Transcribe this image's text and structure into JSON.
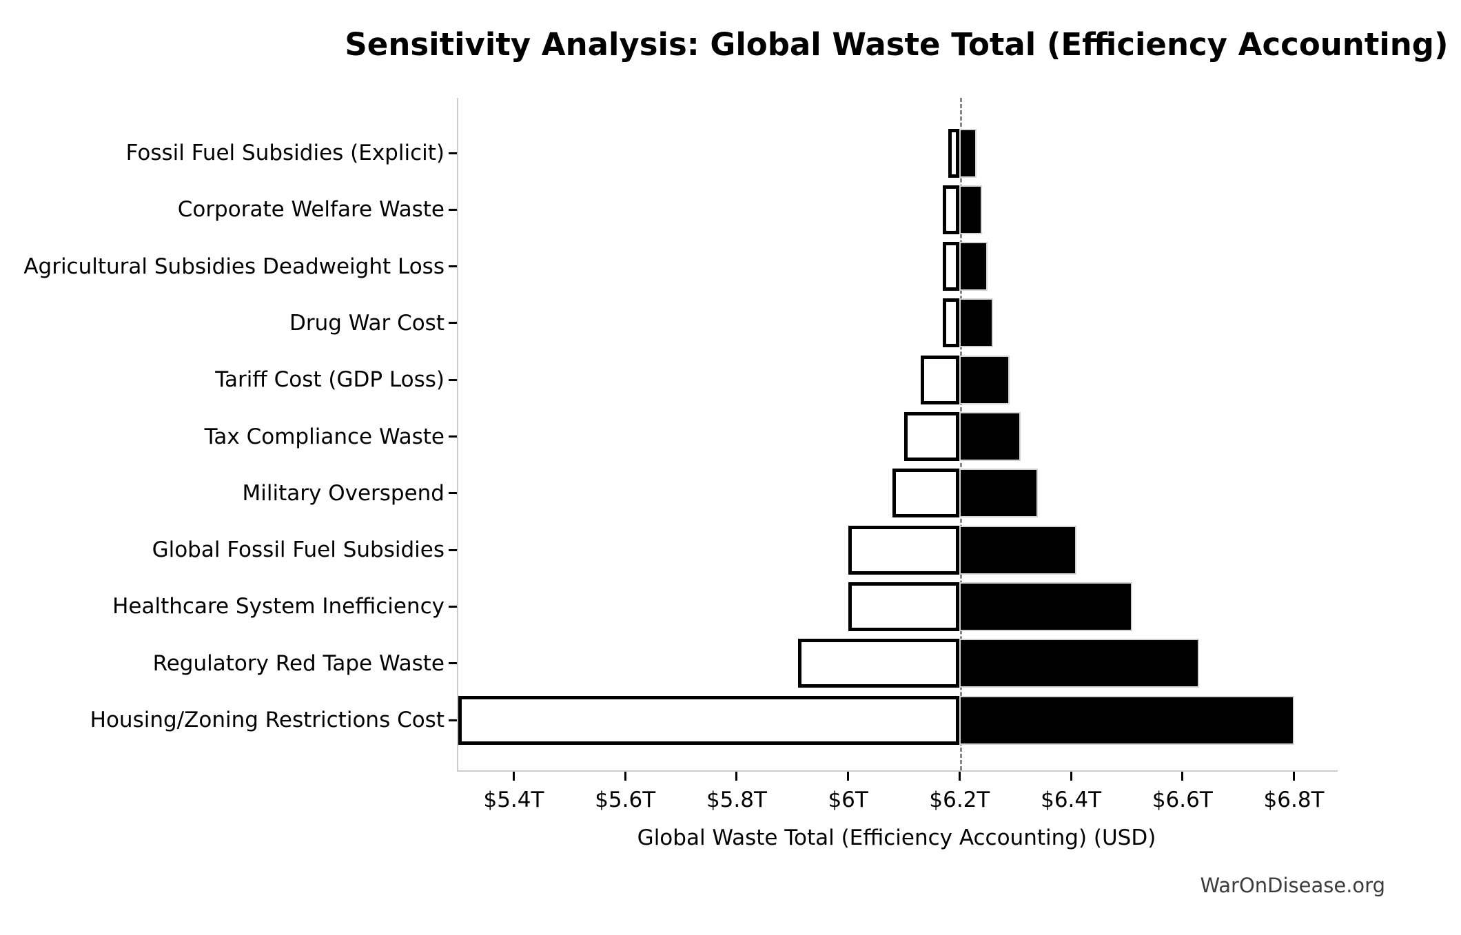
{
  "title": "Sensitivity Analysis: Global Waste Total (Efficiency Accounting)",
  "watermark": "WarOnDisease.org",
  "chart_data": {
    "type": "bar",
    "subtype": "tornado-sensitivity-horizontal",
    "title": "Sensitivity Analysis: Global Waste Total (Efficiency Accounting)",
    "xlabel": "Global Waste Total (Efficiency Accounting) (USD)",
    "ylabel": "",
    "units": "trillions USD",
    "base_value": 6.2,
    "baseline_style": "dashed-gray-vertical",
    "xlim": [
      5.298,
      6.876
    ],
    "grid": false,
    "legend": null,
    "x_ticks": [
      {
        "value": 5.4,
        "label": "$5.4T"
      },
      {
        "value": 5.6,
        "label": "$5.6T"
      },
      {
        "value": 5.8,
        "label": "$5.8T"
      },
      {
        "value": 6.0,
        "label": "$6T"
      },
      {
        "value": 6.2,
        "label": "$6.2T"
      },
      {
        "value": 6.4,
        "label": "$6.4T"
      },
      {
        "value": 6.6,
        "label": "$6.6T"
      },
      {
        "value": 6.8,
        "label": "$6.8T"
      }
    ],
    "categories": [
      "Fossil Fuel Subsidies (Explicit)",
      "Corporate Welfare Waste",
      "Agricultural Subsidies Deadweight Loss",
      "Drug War Cost",
      "Tariff Cost (GDP Loss)",
      "Tax Compliance Waste",
      "Military Overspend",
      "Global Fossil Fuel Subsidies",
      "Healthcare System Inefficiency",
      "Regulatory Red Tape Waste",
      "Housing/Zoning Restrictions Cost"
    ],
    "items": [
      {
        "label": "Fossil Fuel Subsidies (Explicit)",
        "low": 6.18,
        "high": 6.23
      },
      {
        "label": "Corporate Welfare Waste",
        "low": 6.17,
        "high": 6.24
      },
      {
        "label": "Agricultural Subsidies Deadweight Loss",
        "low": 6.17,
        "high": 6.25
      },
      {
        "label": "Drug War Cost",
        "low": 6.17,
        "high": 6.26
      },
      {
        "label": "Tariff Cost (GDP Loss)",
        "low": 6.13,
        "high": 6.29
      },
      {
        "label": "Tax Compliance Waste",
        "low": 6.1,
        "high": 6.31
      },
      {
        "label": "Military Overspend",
        "low": 6.08,
        "high": 6.34
      },
      {
        "label": "Global Fossil Fuel Subsidies",
        "low": 6.0,
        "high": 6.41
      },
      {
        "label": "Healthcare System Inefficiency",
        "low": 6.0,
        "high": 6.51
      },
      {
        "label": "Regulatory Red Tape Waste",
        "low": 5.91,
        "high": 6.63
      },
      {
        "label": "Housing/Zoning Restrictions Cost",
        "low": 5.3,
        "high": 6.8
      }
    ],
    "colors": {
      "low_bar_fill": "#ffffff",
      "low_bar_edge": "#000000",
      "high_bar_fill": "#000000",
      "high_bar_edge": "#d4d4d4",
      "baseline": "#888888",
      "spine": "#cccccc",
      "text": "#000000",
      "watermark_text": "#3c3c3c"
    }
  }
}
